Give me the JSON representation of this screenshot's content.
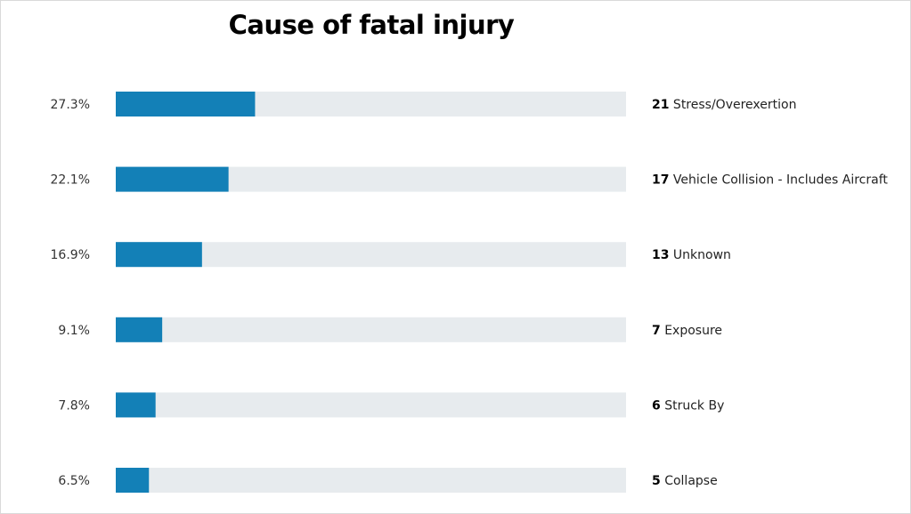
{
  "title": "Cause of fatal injury",
  "colors": {
    "bar": "#1380b7",
    "track": "#e7ebee"
  },
  "chart_data": {
    "type": "bar",
    "orientation": "horizontal",
    "title": "Cause of fatal injury",
    "xlim": [
      0,
      100
    ],
    "grid": false,
    "legend": "none",
    "categories": [
      "Stress/Overexertion",
      "Vehicle Collision - Includes Aircraft",
      "Unknown",
      "Exposure",
      "Struck By",
      "Collapse"
    ],
    "counts": [
      21,
      17,
      13,
      7,
      6,
      5
    ],
    "percent_labels": [
      "27.3%",
      "22.1%",
      "16.9%",
      "9.1%",
      "7.8%",
      "6.5%"
    ],
    "values": [
      27.3,
      22.1,
      16.9,
      9.1,
      7.8,
      6.5
    ]
  }
}
